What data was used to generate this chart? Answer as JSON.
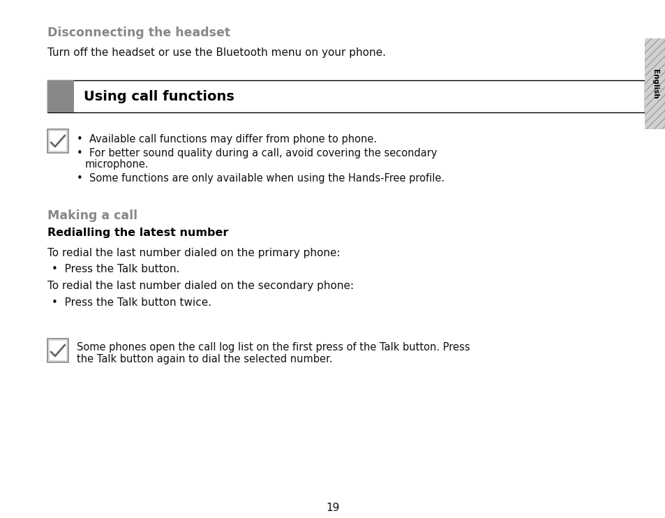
{
  "bg_color": "#ffffff",
  "page_number": "19",
  "section_header": "Disconnecting the headset",
  "section_header_color": "#888888",
  "intro_text": "Turn off the headset or use the Bluetooth menu on your phone.",
  "banner_left_block_color": "#888888",
  "banner_title": "Using call functions",
  "banner_title_color": "#000000",
  "note_bullets": [
    "Available call functions may differ from phone to phone.",
    "For better sound quality during a call, avoid covering the secondary\n    microphone.",
    "Some functions are only available when using the Hands-Free profile."
  ],
  "making_call_header": "Making a call",
  "making_call_color": "#888888",
  "redialling_header": "Redialling the latest number",
  "body_texts": [
    "To redial the last number dialed on the primary phone:",
    "To redial the last number dialed on the secondary phone:"
  ],
  "bullets": [
    "Press the Talk button.",
    "Press the Talk button twice."
  ],
  "note2_line1": "Some phones open the call log list on the first press of the Talk button. Press",
  "note2_line2": "the Talk button again to dial the selected number.",
  "side_tab_text": "English",
  "side_tab_bg": "#d0d0d0",
  "side_tab_stripe_color": "#b0b0b0"
}
